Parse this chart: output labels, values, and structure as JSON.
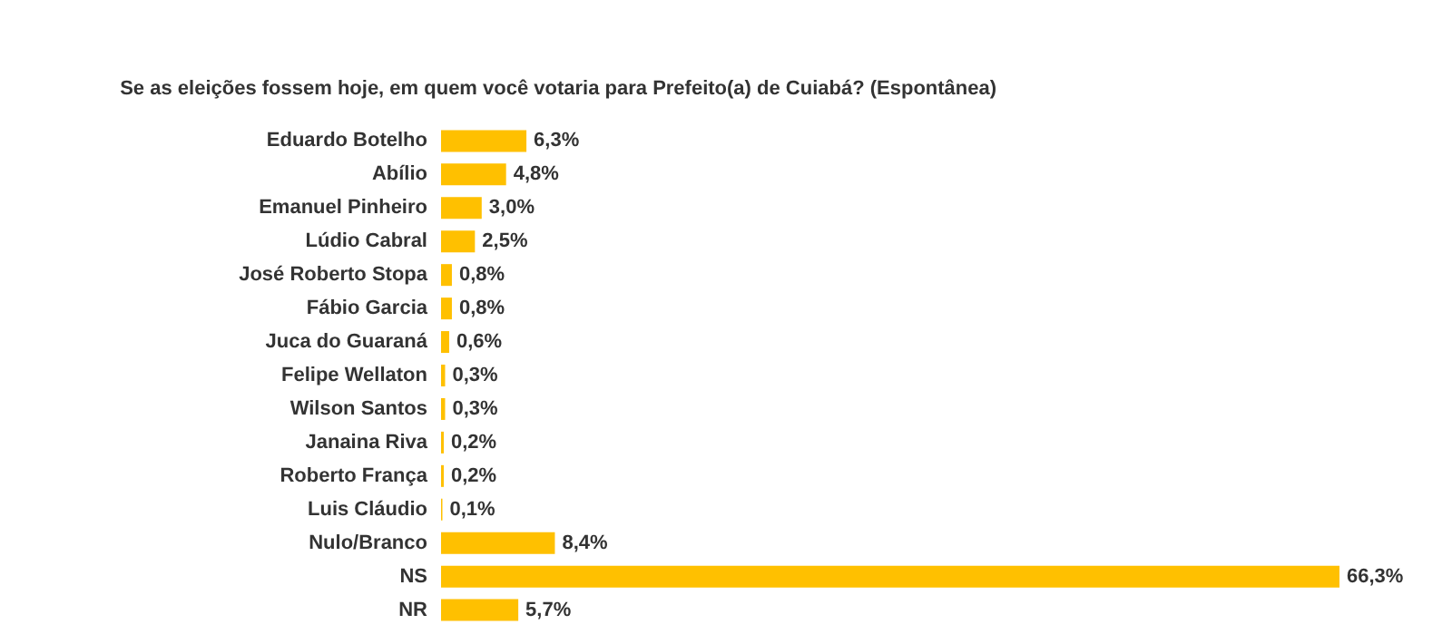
{
  "chart_data": {
    "type": "bar",
    "orientation": "horizontal",
    "title": "Se as eleições fossem hoje, em quem você votaria para Prefeito(a) de Cuiabá? (Espontânea)",
    "categories": [
      "Eduardo Botelho",
      "Abílio",
      "Emanuel Pinheiro",
      "Lúdio Cabral",
      "José Roberto Stopa",
      "Fábio Garcia",
      "Juca do Guaraná",
      "Felipe Wellaton",
      "Wilson Santos",
      "Janaina Riva",
      "Roberto França",
      "Luis Cláudio",
      "Nulo/Branco",
      "NS",
      "NR"
    ],
    "values": [
      6.3,
      4.8,
      3.0,
      2.5,
      0.8,
      0.8,
      0.6,
      0.3,
      0.3,
      0.2,
      0.2,
      0.1,
      8.4,
      66.3,
      5.7
    ],
    "value_labels": [
      "6,3%",
      "4,8%",
      "3,0%",
      "2,5%",
      "0,8%",
      "0,8%",
      "0,6%",
      "0,3%",
      "0,3%",
      "0,2%",
      "0,2%",
      "0,1%",
      "8,4%",
      "66,3%",
      "5,7%"
    ],
    "color": "#ffc000"
  }
}
